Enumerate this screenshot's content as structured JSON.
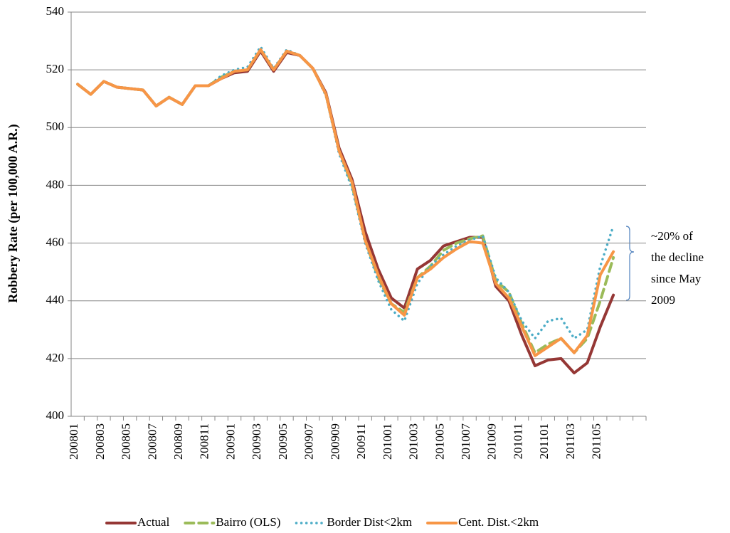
{
  "chart_data": {
    "type": "line",
    "y_label": "Robbery Rate (per 100,000 A.R.)",
    "categories": [
      "200801",
      null,
      "200803",
      null,
      "200805",
      null,
      "200807",
      null,
      "200809",
      null,
      "200811",
      null,
      "200901",
      null,
      "200903",
      null,
      "200905",
      null,
      "200907",
      null,
      "200909",
      null,
      "200911",
      null,
      "201001",
      null,
      "201003",
      null,
      "201005",
      null,
      "201007",
      null,
      "201009",
      null,
      "201011",
      null,
      "201101",
      null,
      "201103",
      null,
      "201105",
      null,
      null,
      null
    ],
    "series": [
      {
        "name": "Actual",
        "color": "#953735",
        "style": "solid",
        "values": [
          515,
          511.5,
          516,
          514,
          513.5,
          513,
          507.5,
          510.5,
          508,
          514.5,
          514.5,
          517,
          519,
          519.5,
          526.5,
          519.5,
          526,
          525,
          520.5,
          512,
          493,
          482,
          464,
          451,
          441,
          437.5,
          451,
          454,
          459,
          460.5,
          462,
          462,
          445,
          440,
          428,
          417.5,
          419.5,
          420,
          415,
          418.5,
          431,
          442,
          null,
          null
        ]
      },
      {
        "name": "Bairro (OLS)",
        "color": "#9bbb59",
        "style": "dashed",
        "values": [
          515,
          511.5,
          516,
          514,
          513.5,
          513,
          507.5,
          510.5,
          508,
          514.5,
          514.5,
          517.5,
          519.5,
          520,
          527,
          520,
          526.5,
          525,
          520.5,
          511.5,
          492,
          480,
          461,
          448,
          439,
          436,
          448,
          452,
          457.5,
          460,
          461.5,
          462.5,
          447,
          443,
          432,
          422,
          425,
          427,
          422,
          427,
          440,
          455,
          null,
          null
        ]
      },
      {
        "name": "Border Dist<2km",
        "color": "#4bacc6",
        "style": "dotted",
        "values": [
          515,
          511.5,
          516,
          514,
          513.5,
          513,
          507.5,
          510.5,
          508,
          514.5,
          514.5,
          518,
          520,
          521,
          528,
          520.5,
          527,
          525,
          520.5,
          511,
          491,
          479,
          460,
          447,
          437,
          433,
          446,
          452,
          456,
          459,
          461,
          462.5,
          448,
          443,
          433,
          427,
          433,
          434,
          427,
          430,
          452,
          466,
          null,
          null
        ]
      },
      {
        "name": "Cent. Dist.<2km",
        "color": "#f79646",
        "style": "solid",
        "values": [
          515,
          511.5,
          516,
          514,
          513.5,
          513,
          507.5,
          510.5,
          508,
          514.5,
          514.5,
          517,
          519.5,
          520,
          527,
          520,
          526.5,
          525,
          520.5,
          511.5,
          492,
          481,
          461,
          449,
          439,
          435,
          448,
          451,
          455,
          458,
          460.5,
          460,
          446,
          441,
          431,
          421,
          424,
          427,
          422,
          428,
          449,
          457,
          null,
          null
        ]
      }
    ],
    "annotation": [
      "~20% of",
      "the decline",
      "since May",
      "2009"
    ],
    "ylim": [
      400,
      540
    ],
    "yticks": [
      400,
      420,
      440,
      460,
      480,
      500,
      520,
      540
    ],
    "grid": true,
    "legend": "bottom"
  }
}
